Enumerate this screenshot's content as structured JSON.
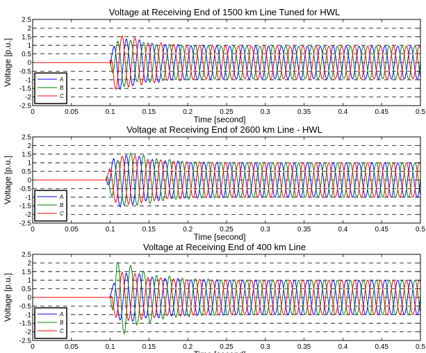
{
  "chart_data": [
    {
      "type": "line",
      "title": "Voltage at Receiving End of 1500 km Line Tuned for HWL",
      "xlabel": "Time [second]",
      "ylabel": "Voltage [p.u.]",
      "xlim": [
        0,
        0.5
      ],
      "ylim": [
        -2.5,
        2.5
      ],
      "xticks": [
        "0",
        "0.05",
        "0.1",
        "0.15",
        "0.2",
        "0.25",
        "0.3",
        "0.35",
        "0.4",
        "0.45",
        "0.5"
      ],
      "yticks": [
        "2.5",
        "2",
        "1.5",
        "1",
        "0.5",
        "0",
        "-0.5",
        "-1",
        "-1.5",
        "-2",
        "-2.5"
      ],
      "grid": "dashed horizontal",
      "legend_position": "bottom-left",
      "switch_time": 0.1,
      "frequency_hz": 60,
      "steady_amplitude": 0.95,
      "series": [
        {
          "name": "A",
          "color": "#0000ff",
          "phase_deg": 0,
          "peak": 1.6,
          "peak_time": 0.11
        },
        {
          "name": "B",
          "color": "#008000",
          "phase_deg": -120,
          "peak": 1.5,
          "peak_time": 0.105
        },
        {
          "name": "C",
          "color": "#ff0000",
          "phase_deg": 120,
          "peak": 1.9,
          "peak_time": 0.102
        }
      ]
    },
    {
      "type": "line",
      "title": "Voltage at Receiving End of 2600 km Line - HWL",
      "xlabel": "Time [second]",
      "ylabel": "Voltage [p.u.]",
      "xlim": [
        0,
        0.5
      ],
      "ylim": [
        -2.5,
        2.5
      ],
      "xticks": [
        "0",
        "0.05",
        "0.1",
        "0.15",
        "0.2",
        "0.25",
        "0.3",
        "0.35",
        "0.4",
        "0.45",
        "0.5"
      ],
      "yticks": [
        "2.5",
        "2",
        "1.5",
        "1",
        "0.5",
        "0",
        "-0.5",
        "-1",
        "-1.5",
        "-2",
        "-2.5"
      ],
      "grid": "dashed horizontal",
      "legend_position": "bottom-left",
      "switch_time": 0.095,
      "frequency_hz": 60,
      "steady_amplitude": 1.0,
      "series": [
        {
          "name": "A",
          "color": "#0000ff",
          "phase_deg": 0,
          "peak": 1.6,
          "peak_time": 0.115
        },
        {
          "name": "B",
          "color": "#008000",
          "phase_deg": -120,
          "peak": 1.6,
          "peak_time": 0.13
        },
        {
          "name": "C",
          "color": "#ff0000",
          "phase_deg": 120,
          "peak": 1.5,
          "peak_time": 0.12
        }
      ]
    },
    {
      "type": "line",
      "title": "Voltage at Receiving End of 400 km Line",
      "xlabel": "Time [second]",
      "ylabel": "Voltage [p.u.]",
      "xlim": [
        0,
        0.5
      ],
      "ylim": [
        -2.5,
        2.5
      ],
      "xticks": [
        "0",
        "0.05",
        "0.1",
        "0.15",
        "0.2",
        "0.25",
        "0.3",
        "0.35",
        "0.4",
        "0.45",
        "0.5"
      ],
      "yticks": [
        "2.5",
        "2",
        "1.5",
        "1",
        "0.5",
        "0",
        "-0.5",
        "-1",
        "-1.5",
        "-2",
        "-2.5"
      ],
      "grid": "dashed horizontal",
      "legend_position": "bottom-left",
      "switch_time": 0.1,
      "frequency_hz": 60,
      "steady_amplitude": 1.0,
      "series": [
        {
          "name": "A",
          "color": "#0000ff",
          "phase_deg": 0,
          "peak": 1.5,
          "peak_time": 0.12
        },
        {
          "name": "B",
          "color": "#008000",
          "phase_deg": -120,
          "peak": 2.4,
          "peak_time": 0.108
        },
        {
          "name": "C",
          "color": "#ff0000",
          "phase_deg": 120,
          "peak": 1.5,
          "peak_time": 0.115
        }
      ]
    }
  ]
}
